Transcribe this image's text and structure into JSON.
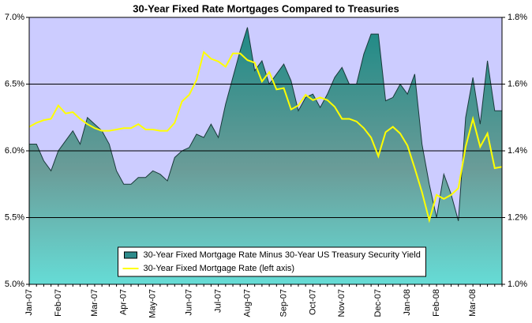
{
  "chart_data": {
    "type": "area-line",
    "title": "30-Year Fixed Rate Mortgages Compared to Treasuries",
    "categories": [
      "Jan-07",
      null,
      null,
      null,
      "Feb-07",
      null,
      null,
      null,
      null,
      "Mar-07",
      null,
      null,
      null,
      "Apr-07",
      null,
      null,
      null,
      "May-07",
      null,
      null,
      null,
      null,
      "Jun-07",
      null,
      null,
      null,
      "Jul-07",
      null,
      null,
      null,
      "Aug-07",
      null,
      null,
      null,
      null,
      "Sep-07",
      null,
      null,
      null,
      "Oct-07",
      null,
      null,
      null,
      "Nov-07",
      null,
      null,
      null,
      null,
      "Dec-07",
      null,
      null,
      null,
      "Jan-08",
      null,
      null,
      null,
      "Feb-08",
      null,
      null,
      null,
      null,
      "Mar-08",
      null,
      null,
      null,
      null
    ],
    "series": [
      {
        "name": "30-Year Fixed Mortgage Rate Minus 30-Year US Treasury Security Yield",
        "kind": "area",
        "axis": "y2",
        "color": "#2e8b8b",
        "values": [
          1.42,
          1.42,
          1.37,
          1.34,
          1.4,
          1.43,
          1.46,
          1.42,
          1.5,
          1.48,
          1.46,
          1.42,
          1.34,
          1.3,
          1.3,
          1.32,
          1.32,
          1.34,
          1.33,
          1.31,
          1.38,
          1.4,
          1.41,
          1.45,
          1.44,
          1.48,
          1.44,
          1.54,
          1.62,
          1.7,
          1.77,
          1.64,
          1.67,
          1.6,
          1.63,
          1.66,
          1.61,
          1.52,
          1.56,
          1.57,
          1.53,
          1.57,
          1.62,
          1.65,
          1.6,
          1.6,
          1.69,
          1.75,
          1.75,
          1.55,
          1.56,
          1.6,
          1.57,
          1.63,
          1.42,
          1.3,
          1.2,
          1.33,
          1.27,
          1.19,
          1.5,
          1.62,
          1.48,
          1.67,
          1.52,
          1.52
        ]
      },
      {
        "name": "30-Year Fixed Mortgage Rate (left axis)",
        "kind": "line",
        "axis": "y",
        "color": "#ffff00",
        "values": [
          6.18,
          6.21,
          6.23,
          6.24,
          6.34,
          6.28,
          6.29,
          6.24,
          6.2,
          6.17,
          6.15,
          6.15,
          6.16,
          6.17,
          6.17,
          6.2,
          6.16,
          6.16,
          6.15,
          6.15,
          6.21,
          6.37,
          6.42,
          6.53,
          6.74,
          6.69,
          6.67,
          6.63,
          6.73,
          6.73,
          6.68,
          6.66,
          6.52,
          6.59,
          6.46,
          6.47,
          6.31,
          6.34,
          6.42,
          6.38,
          6.4,
          6.38,
          6.33,
          6.24,
          6.24,
          6.22,
          6.17,
          6.1,
          5.96,
          6.14,
          6.18,
          6.13,
          6.04,
          5.87,
          5.69,
          5.48,
          5.67,
          5.64,
          5.67,
          5.72,
          6.03,
          6.24,
          6.03,
          6.13,
          5.87,
          5.88
        ]
      }
    ],
    "ylim": [
      5.0,
      7.0
    ],
    "yticks": [
      {
        "value": 5,
        "label": "5.0%"
      },
      {
        "value": 5.5,
        "label": "5.5%"
      },
      {
        "value": 6,
        "label": "6.0%"
      },
      {
        "value": 6.5,
        "label": "6.5%"
      },
      {
        "value": 7,
        "label": "7.0%"
      }
    ],
    "y2lim": [
      1.0,
      1.8
    ],
    "y2ticks": [
      {
        "value": 1,
        "label": "1.0%"
      },
      {
        "value": 1.2,
        "label": "1.2%"
      },
      {
        "value": 1.4,
        "label": "1.4%"
      },
      {
        "value": 1.6,
        "label": "1.6%"
      },
      {
        "value": 1.8,
        "label": "1.8%"
      }
    ],
    "grid": true,
    "legend": "lower center",
    "background": "#ccccff"
  }
}
